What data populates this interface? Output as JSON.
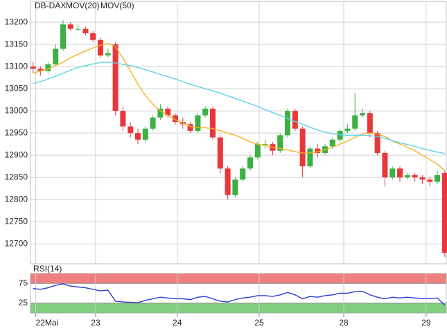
{
  "chart_data": [
    {
      "type": "candlestick",
      "name": "DB-DAX",
      "up_color": "#3cb043",
      "down_color": "#e8373b",
      "x": [
        0,
        2,
        4,
        6,
        8,
        10,
        12,
        14,
        16,
        18,
        20,
        22,
        24,
        26,
        28,
        30,
        32,
        34,
        36,
        38,
        40,
        42,
        44,
        46,
        48,
        50,
        52,
        54,
        56,
        58,
        60,
        62,
        64,
        66,
        68,
        70,
        72,
        74,
        76,
        78,
        80,
        82,
        84,
        86,
        88,
        90,
        92,
        94,
        96,
        98,
        100,
        102,
        104,
        106,
        108,
        110
      ],
      "open": [
        13100,
        13095,
        13090,
        13105,
        13140,
        13195,
        13185,
        13185,
        13175,
        13160,
        13125,
        13150,
        13000,
        12965,
        12950,
        12935,
        12960,
        12985,
        13005,
        12990,
        12975,
        12970,
        12955,
        12990,
        13005,
        12940,
        12870,
        12810,
        12845,
        12870,
        12895,
        12925,
        12925,
        12910,
        12945,
        13000,
        12960,
        12875,
        12915,
        12905,
        12920,
        12935,
        12955,
        12960,
        12990,
        12995,
        12950,
        12905,
        12850,
        12870,
        12850,
        12855,
        12850,
        12845,
        12840,
        12860
      ],
      "high": [
        13110,
        13100,
        13110,
        13150,
        13205,
        13200,
        13195,
        13190,
        13180,
        13165,
        13140,
        13155,
        13010,
        12975,
        12960,
        12965,
        12990,
        13015,
        13010,
        12995,
        12985,
        12975,
        12995,
        13010,
        13010,
        12945,
        12875,
        12850,
        12875,
        12900,
        12930,
        12935,
        12930,
        12950,
        13005,
        13005,
        12965,
        12920,
        12925,
        12925,
        12940,
        12960,
        12970,
        13040,
        13005,
        13000,
        12955,
        12910,
        12875,
        12875,
        12860,
        12860,
        12855,
        12850,
        12865,
        12865
      ],
      "low": [
        13085,
        13080,
        13085,
        13100,
        13135,
        13180,
        13180,
        13170,
        13155,
        13120,
        13120,
        12990,
        12955,
        12940,
        12925,
        12930,
        12955,
        12980,
        12985,
        12970,
        12960,
        12950,
        12950,
        12985,
        12935,
        12860,
        12800,
        12805,
        12840,
        12865,
        12890,
        12915,
        12900,
        12905,
        12940,
        12955,
        12850,
        12870,
        12895,
        12900,
        12915,
        12930,
        12950,
        12955,
        12985,
        12940,
        12900,
        12830,
        12845,
        12840,
        12845,
        12840,
        12835,
        12830,
        12835,
        12670
      ],
      "close": [
        13095,
        13090,
        13105,
        13140,
        13195,
        13185,
        13185,
        13175,
        13160,
        13125,
        13130,
        13000,
        12965,
        12950,
        12935,
        12960,
        12985,
        13005,
        12990,
        12975,
        12970,
        12955,
        12990,
        13005,
        12940,
        12870,
        12810,
        12845,
        12870,
        12895,
        12925,
        12925,
        12910,
        12945,
        13000,
        12960,
        12875,
        12915,
        12905,
        12920,
        12935,
        12955,
        12960,
        12990,
        12995,
        12950,
        12905,
        12850,
        12870,
        12850,
        12855,
        12850,
        12845,
        12840,
        12855,
        12680
      ],
      "series": [
        {
          "name": "MOV(20)",
          "color": "#f5b324",
          "values": [
            13085,
            13090,
            13095,
            13102,
            13110,
            13120,
            13128,
            13135,
            13142,
            13148,
            13152,
            13145,
            13120,
            13090,
            13060,
            13035,
            13015,
            13000,
            12990,
            12980,
            12972,
            12965,
            12962,
            12962,
            12960,
            12955,
            12950,
            12945,
            12938,
            12930,
            12925,
            12922,
            12918,
            12915,
            12912,
            12908,
            12905,
            12905,
            12908,
            12912,
            12918,
            12925,
            12932,
            12940,
            12948,
            12950,
            12948,
            12942,
            12932,
            12925,
            12918,
            12910,
            12900,
            12890,
            12880,
            12865
          ]
        },
        {
          "name": "MOV(50)",
          "color": "#5fd3e8",
          "values": [
            13062,
            13066,
            13072,
            13078,
            13085,
            13092,
            13098,
            13102,
            13106,
            13109,
            13110,
            13108,
            13105,
            13102,
            13098,
            13093,
            13088,
            13082,
            13077,
            13072,
            13066,
            13060,
            13055,
            13050,
            13045,
            13040,
            13034,
            13028,
            13022,
            13016,
            13010,
            13003,
            12996,
            12990,
            12983,
            12976,
            12970,
            12963,
            12957,
            12952,
            12948,
            12946,
            12945,
            12945,
            12945,
            12944,
            12942,
            12938,
            12933,
            12928,
            12924,
            12920,
            12915,
            12911,
            12907,
            12904
          ]
        }
      ],
      "xlim": [
        -0.7,
        110.4
      ],
      "xticks": [
        {
          "value": 0.7,
          "label": "22Mai"
        },
        {
          "value": 16.7,
          "label": "23"
        },
        {
          "value": 38.5,
          "label": "24"
        },
        {
          "value": 60.4,
          "label": "25"
        },
        {
          "value": 83,
          "label": "28"
        },
        {
          "value": 105,
          "label": "29"
        }
      ],
      "ylim": [
        12655,
        13247
      ],
      "yticks": [
        12700,
        12750,
        12800,
        12850,
        12900,
        12950,
        13000,
        13050,
        13100,
        13150,
        13200
      ],
      "grid": true
    },
    {
      "type": "line",
      "name": "RSI(14)",
      "color": "#2a3bd6",
      "values": [
        62,
        60,
        64,
        70,
        74,
        68,
        66,
        64,
        60,
        56,
        58,
        30,
        28,
        27,
        26,
        32,
        36,
        40,
        38,
        36,
        36,
        34,
        40,
        42,
        36,
        30,
        28,
        34,
        38,
        40,
        44,
        44,
        42,
        46,
        52,
        46,
        36,
        42,
        40,
        44,
        46,
        50,
        50,
        54,
        55,
        46,
        40,
        36,
        40,
        38,
        40,
        38,
        37,
        36,
        38,
        20
      ],
      "ylim": [
        0,
        100
      ],
      "yticks": [
        25,
        75
      ],
      "bands": [
        {
          "from": 75,
          "to": 100,
          "color": "#f08080"
        },
        {
          "from": 0,
          "to": 25,
          "color": "#7fcf7f"
        }
      ]
    }
  ]
}
